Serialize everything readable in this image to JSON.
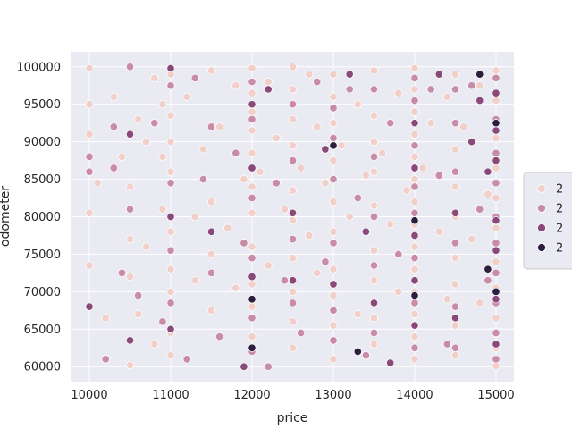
{
  "chart_data": {
    "type": "scatter",
    "xlabel": "price",
    "ylabel": "odometer",
    "xlim": [
      9780,
      15220
    ],
    "ylim": [
      58000,
      102000
    ],
    "x_ticks": [
      10000,
      11000,
      12000,
      13000,
      14000,
      15000
    ],
    "y_ticks": [
      60000,
      65000,
      70000,
      75000,
      80000,
      85000,
      90000,
      95000,
      100000
    ],
    "grid": true,
    "background": "#eaeaf2",
    "grid_color": "#ffffff",
    "point_edge_color": "#ffffff",
    "legend": {
      "placement": "right",
      "entries": [
        {
          "label": "2",
          "color": "#f0d0c8"
        },
        {
          "label": "2",
          "color": "#c98ca6"
        },
        {
          "label": "2",
          "color": "#8a4a79"
        },
        {
          "label": "2",
          "color": "#2d1e3e"
        }
      ]
    },
    "series": [
      {
        "color": "#f0d0c8",
        "points": [
          [
            10000,
            99800
          ],
          [
            10000,
            95000
          ],
          [
            10000,
            91000
          ],
          [
            10000,
            80500
          ],
          [
            10000,
            73500
          ],
          [
            10100,
            84500
          ],
          [
            10200,
            66500
          ],
          [
            10300,
            96000
          ],
          [
            10400,
            88000
          ],
          [
            10500,
            84000
          ],
          [
            10500,
            77000
          ],
          [
            10500,
            72000
          ],
          [
            10500,
            60200
          ],
          [
            10600,
            93000
          ],
          [
            10600,
            67000
          ],
          [
            10700,
            90000
          ],
          [
            10700,
            76000
          ],
          [
            10800,
            98500
          ],
          [
            10800,
            63000
          ],
          [
            10900,
            95000
          ],
          [
            10900,
            88000
          ],
          [
            10900,
            81000
          ],
          [
            11000,
            99000
          ],
          [
            11000,
            93500
          ],
          [
            11000,
            90000
          ],
          [
            11000,
            86000
          ],
          [
            11000,
            78000
          ],
          [
            11000,
            73000
          ],
          [
            11000,
            70000
          ],
          [
            11000,
            64500
          ],
          [
            11000,
            61500
          ],
          [
            11200,
            96000
          ],
          [
            11300,
            80000
          ],
          [
            11300,
            71500
          ],
          [
            11400,
            89000
          ],
          [
            11500,
            99500
          ],
          [
            11500,
            82000
          ],
          [
            11500,
            75000
          ],
          [
            11500,
            67500
          ],
          [
            11600,
            92000
          ],
          [
            11700,
            78500
          ],
          [
            11800,
            97500
          ],
          [
            11800,
            70500
          ],
          [
            11900,
            85000
          ],
          [
            12000,
            99800
          ],
          [
            12000,
            96500
          ],
          [
            12000,
            94000
          ],
          [
            12000,
            91500
          ],
          [
            12000,
            88500
          ],
          [
            12000,
            84000
          ],
          [
            12000,
            80500
          ],
          [
            12000,
            76000
          ],
          [
            12000,
            71000
          ],
          [
            12000,
            68000
          ],
          [
            12000,
            64000
          ],
          [
            12100,
            86000
          ],
          [
            12200,
            98000
          ],
          [
            12200,
            73500
          ],
          [
            12300,
            90500
          ],
          [
            12400,
            81000
          ],
          [
            12500,
            100000
          ],
          [
            12500,
            97000
          ],
          [
            12500,
            93000
          ],
          [
            12500,
            89500
          ],
          [
            12500,
            83500
          ],
          [
            12500,
            79500
          ],
          [
            12500,
            74500
          ],
          [
            12500,
            70000
          ],
          [
            12500,
            66000
          ],
          [
            12500,
            62500
          ],
          [
            12600,
            86500
          ],
          [
            12700,
            99000
          ],
          [
            12700,
            77500
          ],
          [
            12800,
            92000
          ],
          [
            12800,
            72500
          ],
          [
            12900,
            84500
          ],
          [
            13000,
            99000
          ],
          [
            13000,
            96000
          ],
          [
            13000,
            92500
          ],
          [
            13000,
            87500
          ],
          [
            13000,
            82000
          ],
          [
            13000,
            78000
          ],
          [
            13000,
            73000
          ],
          [
            13000,
            69500
          ],
          [
            13000,
            65500
          ],
          [
            13000,
            61000
          ],
          [
            13100,
            89500
          ],
          [
            13200,
            80000
          ],
          [
            13300,
            95000
          ],
          [
            13300,
            67000
          ],
          [
            13400,
            85500
          ],
          [
            13500,
            99500
          ],
          [
            13500,
            93500
          ],
          [
            13500,
            90000
          ],
          [
            13500,
            86000
          ],
          [
            13500,
            81500
          ],
          [
            13500,
            75500
          ],
          [
            13500,
            71500
          ],
          [
            13500,
            66500
          ],
          [
            13500,
            63000
          ],
          [
            13600,
            88500
          ],
          [
            13700,
            79000
          ],
          [
            13800,
            96500
          ],
          [
            13800,
            70000
          ],
          [
            13900,
            83500
          ],
          [
            14000,
            99800
          ],
          [
            14000,
            97000
          ],
          [
            14000,
            94000
          ],
          [
            14000,
            91000
          ],
          [
            14000,
            88000
          ],
          [
            14000,
            85000
          ],
          [
            14000,
            82000
          ],
          [
            14000,
            79000
          ],
          [
            14000,
            76000
          ],
          [
            14000,
            73000
          ],
          [
            14000,
            70000
          ],
          [
            14000,
            67000
          ],
          [
            14000,
            64000
          ],
          [
            14000,
            61000
          ],
          [
            14100,
            86500
          ],
          [
            14200,
            92500
          ],
          [
            14300,
            78000
          ],
          [
            14400,
            96000
          ],
          [
            14400,
            69000
          ],
          [
            14500,
            99000
          ],
          [
            14500,
            89000
          ],
          [
            14500,
            84000
          ],
          [
            14500,
            80000
          ],
          [
            14500,
            74500
          ],
          [
            14500,
            71000
          ],
          [
            14500,
            65500
          ],
          [
            14500,
            61500
          ],
          [
            14600,
            92000
          ],
          [
            14700,
            77000
          ],
          [
            14800,
            97500
          ],
          [
            14800,
            68500
          ],
          [
            14900,
            83000
          ],
          [
            15000,
            99500
          ],
          [
            15000,
            95500
          ],
          [
            15000,
            90500
          ],
          [
            15000,
            86500
          ],
          [
            15000,
            82500
          ],
          [
            15000,
            78500
          ],
          [
            15000,
            74000
          ],
          [
            15000,
            70500
          ],
          [
            15000,
            66500
          ],
          [
            15000,
            62500
          ],
          [
            15000,
            60100
          ]
        ]
      },
      {
        "color": "#c98ca6",
        "points": [
          [
            10000,
            88000
          ],
          [
            10000,
            86000
          ],
          [
            10200,
            61000
          ],
          [
            10300,
            92000
          ],
          [
            10300,
            86500
          ],
          [
            10400,
            72500
          ],
          [
            10500,
            100000
          ],
          [
            10500,
            81000
          ],
          [
            10600,
            69500
          ],
          [
            10800,
            92500
          ],
          [
            10900,
            66000
          ],
          [
            11000,
            97500
          ],
          [
            11000,
            84500
          ],
          [
            11000,
            75500
          ],
          [
            11000,
            68500
          ],
          [
            11200,
            61000
          ],
          [
            11300,
            98500
          ],
          [
            11400,
            85000
          ],
          [
            11500,
            92000
          ],
          [
            11500,
            72500
          ],
          [
            11600,
            64000
          ],
          [
            11800,
            88500
          ],
          [
            11900,
            76500
          ],
          [
            12000,
            98000
          ],
          [
            12000,
            93000
          ],
          [
            12000,
            82500
          ],
          [
            12000,
            74500
          ],
          [
            12000,
            66500
          ],
          [
            12000,
            62000
          ],
          [
            12200,
            60000
          ],
          [
            12300,
            84500
          ],
          [
            12400,
            71500
          ],
          [
            12500,
            95000
          ],
          [
            12500,
            87500
          ],
          [
            12500,
            77000
          ],
          [
            12500,
            68500
          ],
          [
            12600,
            64500
          ],
          [
            12800,
            98000
          ],
          [
            12900,
            74000
          ],
          [
            13000,
            94500
          ],
          [
            13000,
            90500
          ],
          [
            13000,
            85000
          ],
          [
            13000,
            76500
          ],
          [
            13000,
            67500
          ],
          [
            13000,
            63500
          ],
          [
            13200,
            97000
          ],
          [
            13300,
            82500
          ],
          [
            13400,
            61500
          ],
          [
            13500,
            97000
          ],
          [
            13500,
            88000
          ],
          [
            13500,
            80000
          ],
          [
            13500,
            73500
          ],
          [
            13500,
            64500
          ],
          [
            13700,
            92500
          ],
          [
            13800,
            75000
          ],
          [
            14000,
            98500
          ],
          [
            14000,
            95500
          ],
          [
            14000,
            89500
          ],
          [
            14000,
            84000
          ],
          [
            14000,
            80500
          ],
          [
            14000,
            74500
          ],
          [
            14000,
            68500
          ],
          [
            14000,
            62500
          ],
          [
            14200,
            97000
          ],
          [
            14300,
            85500
          ],
          [
            14400,
            63000
          ],
          [
            14500,
            97000
          ],
          [
            14500,
            92500
          ],
          [
            14500,
            86000
          ],
          [
            14500,
            76500
          ],
          [
            14500,
            68000
          ],
          [
            14500,
            62500
          ],
          [
            14700,
            97500
          ],
          [
            14800,
            81000
          ],
          [
            14900,
            71500
          ],
          [
            15000,
            98500
          ],
          [
            15000,
            93000
          ],
          [
            15000,
            88500
          ],
          [
            15000,
            84500
          ],
          [
            15000,
            80000
          ],
          [
            15000,
            76500
          ],
          [
            15000,
            72500
          ],
          [
            15000,
            68500
          ],
          [
            15000,
            64500
          ],
          [
            15000,
            61000
          ]
        ]
      },
      {
        "color": "#8a4a79",
        "points": [
          [
            10000,
            68000
          ],
          [
            10500,
            91000
          ],
          [
            10500,
            63500
          ],
          [
            11000,
            99800
          ],
          [
            11000,
            80000
          ],
          [
            11000,
            65000
          ],
          [
            11500,
            78000
          ],
          [
            11900,
            60000
          ],
          [
            12000,
            95000
          ],
          [
            12000,
            86500
          ],
          [
            12000,
            72000
          ],
          [
            12200,
            97000
          ],
          [
            12500,
            80500
          ],
          [
            12500,
            71500
          ],
          [
            12900,
            89000
          ],
          [
            13000,
            71000
          ],
          [
            13200,
            99000
          ],
          [
            13400,
            78000
          ],
          [
            13500,
            68500
          ],
          [
            13700,
            60500
          ],
          [
            14000,
            92500
          ],
          [
            14000,
            86500
          ],
          [
            14000,
            77500
          ],
          [
            14000,
            71500
          ],
          [
            14000,
            65500
          ],
          [
            14300,
            99000
          ],
          [
            14500,
            80500
          ],
          [
            14500,
            66500
          ],
          [
            14700,
            90000
          ],
          [
            14800,
            95500
          ],
          [
            14900,
            86000
          ],
          [
            15000,
            96500
          ],
          [
            15000,
            91500
          ],
          [
            15000,
            87500
          ],
          [
            15000,
            79500
          ],
          [
            15000,
            75500
          ],
          [
            15000,
            69000
          ],
          [
            15000,
            63000
          ]
        ]
      },
      {
        "color": "#2d1e3e",
        "points": [
          [
            12000,
            62500
          ],
          [
            12000,
            69000
          ],
          [
            13000,
            89500
          ],
          [
            13300,
            62000
          ],
          [
            14000,
            79500
          ],
          [
            14000,
            69500
          ],
          [
            14800,
            99000
          ],
          [
            14900,
            73000
          ],
          [
            15000,
            92500
          ],
          [
            15000,
            70000
          ]
        ]
      }
    ]
  }
}
